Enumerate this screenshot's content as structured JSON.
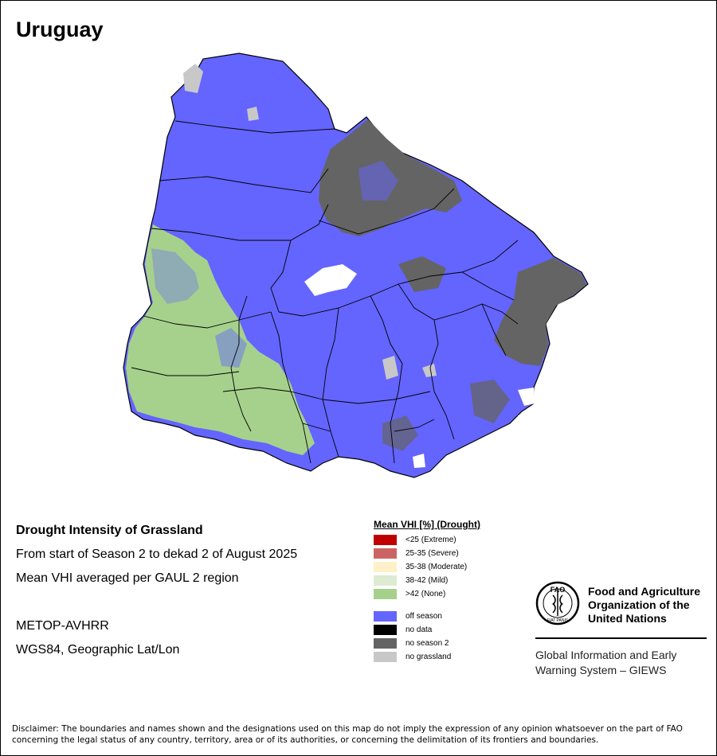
{
  "map": {
    "title": "Uruguay"
  },
  "info": {
    "line1": "Drought Intensity of Grassland",
    "line2": "From start of Season 2 to dekad 2 of August 2025",
    "line3": "Mean VHI averaged per GAUL 2 region",
    "sensor": "METOP-AVHRR",
    "projection": "WGS84, Geographic Lat/Lon"
  },
  "legend": {
    "title": "Mean VHI [%] (Drought)",
    "items": [
      {
        "label": "<25    (Extreme)",
        "color": "#c00000"
      },
      {
        "label": "25-35 (Severe)",
        "color": "#cd6464"
      },
      {
        "label": "35-38 (Moderate)",
        "color": "#fff0c8"
      },
      {
        "label": "38-42 (Mild)",
        "color": "#dcebd2"
      },
      {
        "label": ">42    (None)",
        "color": "#a6d18c"
      },
      {
        "label": "off season",
        "color": "#6464ff"
      },
      {
        "label": "no data",
        "color": "#000000"
      },
      {
        "label": "no season 2",
        "color": "#646464"
      },
      {
        "label": "no grassland",
        "color": "#c8c8c8"
      }
    ]
  },
  "logo": {
    "org_line1": "Food and Agriculture",
    "org_line2": "Organization of the",
    "org_line3": "United Nations",
    "system_line1": "Global Information and Early",
    "system_line2": "Warning System – GIEWS",
    "logo_text": "FAO",
    "motto": "FIAT PANIS"
  },
  "disclaimer": {
    "line1": "Disclaimer: The boundaries and names shown and the designations used on this map do not imply the expression of any opinion whatsoever on the part of FAO",
    "line2": "concerning the legal status of any country, territory, area or of its authorities, or concerning the delimitation of its frontiers and boundaries."
  }
}
